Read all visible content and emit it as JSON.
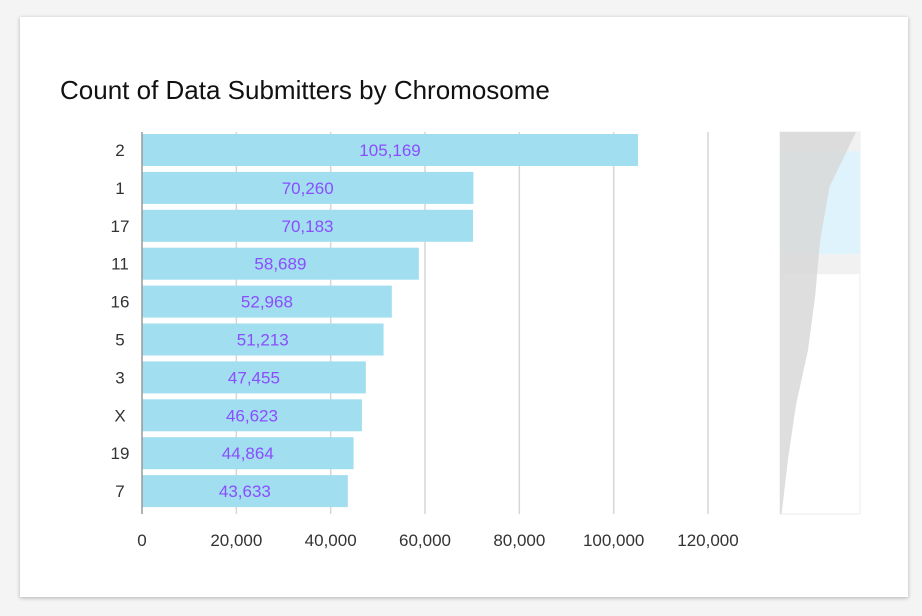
{
  "card": {
    "title": "Count of Data Submitters by Chromosome"
  },
  "colors": {
    "bar": "#a1def0",
    "value_label": "#8b4dff",
    "grid": "#d6d6d6",
    "axis": "#999999",
    "window": "#def3fc",
    "silhouette": "#d8d8d8"
  },
  "chart_data": {
    "type": "bar",
    "orientation": "horizontal",
    "title": "Count of Data Submitters by Chromosome",
    "xlabel": "",
    "ylabel": "",
    "categories": [
      "2",
      "1",
      "17",
      "11",
      "16",
      "5",
      "3",
      "X",
      "19",
      "7"
    ],
    "values": [
      105169,
      70260,
      70183,
      58689,
      52968,
      51213,
      47455,
      46623,
      44864,
      43633
    ],
    "value_labels": [
      "105,169",
      "70,260",
      "70,183",
      "58,689",
      "52,968",
      "51,213",
      "47,455",
      "46,623",
      "44,864",
      "43,633"
    ],
    "xticks": [
      0,
      20000,
      40000,
      60000,
      80000,
      100000,
      120000
    ],
    "xtick_labels": [
      "0",
      "20,000",
      "40,000",
      "60,000",
      "80,000",
      "100,000",
      "120,000"
    ],
    "xlim": [
      0,
      134000
    ],
    "grid": true,
    "legend": "none",
    "navigator": {
      "silhouette": [
        0.95,
        0.62,
        0.5,
        0.44,
        0.35,
        0.2,
        0.1,
        0.02
      ],
      "selection_fraction": [
        0.05,
        0.32
      ]
    }
  }
}
